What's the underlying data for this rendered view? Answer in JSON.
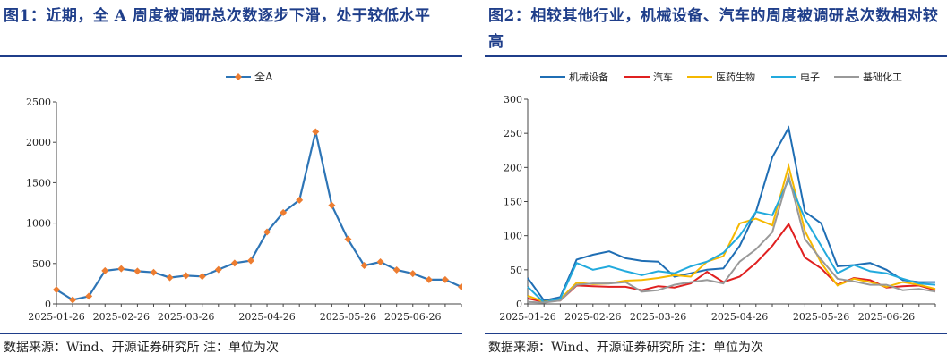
{
  "charts": [
    {
      "figure_title": "图1：近期，全 A 周度被调研总次数逐步下滑，处于较低水平",
      "source_note": "数据来源：Wind、开源证券研究所 注：单位为次"
    },
    {
      "figure_title": "图2：相较其他行业，机械设备、汽车的周度被调研总次数相对较高",
      "source_note": "数据来源：Wind、开源证券研究所 注：单位为次"
    }
  ],
  "chart_data": [
    {
      "type": "line",
      "title": "",
      "xlabel": "",
      "ylabel": "",
      "ylim": [
        0,
        2500
      ],
      "yticks": [
        0,
        500,
        1000,
        1500,
        2000,
        2500
      ],
      "xtick_labels": [
        "2025-01-26",
        "2025-02-26",
        "2025-03-26",
        "2025-04-26",
        "2025-05-26",
        "2025-06-26"
      ],
      "xtick_index": [
        0,
        4,
        8,
        13,
        18,
        22
      ],
      "legend_position": "top-center",
      "grid": false,
      "series": [
        {
          "name": "全A",
          "color": "#2e75b6",
          "marker_color": "#ed7d31",
          "values": [
            175,
            50,
            95,
            410,
            435,
            405,
            390,
            325,
            350,
            340,
            425,
            505,
            535,
            890,
            1130,
            1285,
            2130,
            1220,
            800,
            475,
            520,
            420,
            375,
            300,
            300,
            210
          ]
        }
      ]
    },
    {
      "type": "line",
      "title": "",
      "xlabel": "",
      "ylabel": "",
      "ylim": [
        0,
        300
      ],
      "yticks": [
        0,
        50,
        100,
        150,
        200,
        250,
        300
      ],
      "xtick_labels": [
        "2025-01-26",
        "2025-02-26",
        "2025-03-26",
        "2025-04-26",
        "2025-05-26",
        "2025-06-26"
      ],
      "xtick_index": [
        0,
        4,
        8,
        13,
        18,
        22
      ],
      "legend_position": "top",
      "grid": false,
      "series": [
        {
          "name": "机械设备",
          "color": "#1f6eb4",
          "values": [
            38,
            5,
            10,
            65,
            72,
            77,
            67,
            63,
            62,
            40,
            45,
            50,
            52,
            85,
            135,
            215,
            258,
            135,
            118,
            55,
            57,
            60,
            50,
            35,
            32,
            32
          ]
        },
        {
          "name": "汽车",
          "color": "#e02020",
          "values": [
            8,
            3,
            5,
            27,
            26,
            25,
            25,
            20,
            26,
            24,
            30,
            47,
            32,
            40,
            60,
            85,
            117,
            68,
            52,
            28,
            38,
            35,
            24,
            26,
            27,
            20
          ]
        },
        {
          "name": "医药生物",
          "color": "#f5b800",
          "values": [
            12,
            3,
            7,
            31,
            29,
            30,
            34,
            35,
            38,
            42,
            40,
            62,
            70,
            118,
            125,
            115,
            202,
            107,
            60,
            27,
            37,
            32,
            25,
            32,
            28,
            22
          ]
        },
        {
          "name": "电子",
          "color": "#22aadd",
          "values": [
            25,
            2,
            8,
            60,
            50,
            55,
            48,
            42,
            48,
            45,
            55,
            62,
            75,
            100,
            135,
            130,
            182,
            125,
            85,
            45,
            57,
            48,
            45,
            37,
            30,
            28
          ]
        },
        {
          "name": "基础化工",
          "color": "#999999",
          "values": [
            3,
            2,
            5,
            28,
            30,
            30,
            32,
            18,
            20,
            28,
            32,
            35,
            30,
            62,
            80,
            105,
            188,
            95,
            65,
            37,
            33,
            28,
            28,
            20,
            22,
            18
          ]
        }
      ]
    }
  ]
}
